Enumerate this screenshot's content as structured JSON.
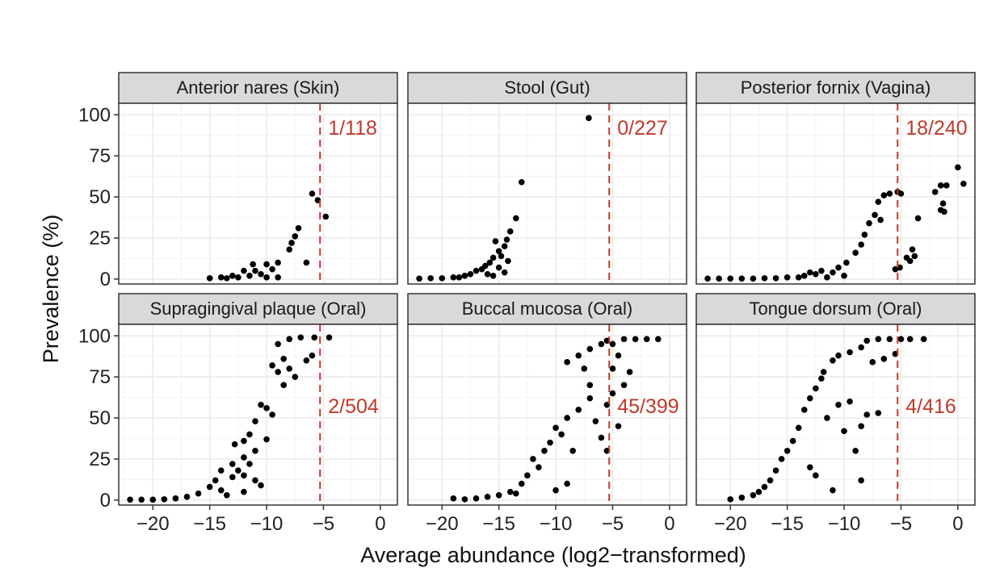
{
  "colors": {
    "points": "#000000",
    "threshold_line": "#c0392b",
    "annotation": "#c0392b",
    "strip_background": "#d9d9d9",
    "grid": "#ebebeb",
    "panel_border": "#333333"
  },
  "chart_data": {
    "type": "scatter",
    "layout": "facet-grid 2x3",
    "xlabel": "Average abundance (log2−transformed)",
    "ylabel": "Prevalence (%)",
    "xlim": [
      -23,
      1.5
    ],
    "ylim": [
      -3,
      107
    ],
    "x_ticks": [
      -20,
      -15,
      -10,
      -5,
      0
    ],
    "x_tick_labels": [
      "−20",
      "−15",
      "−10",
      "−5",
      "0"
    ],
    "y_ticks": [
      0,
      25,
      50,
      75,
      100
    ],
    "y_tick_labels": [
      "0",
      "25",
      "50",
      "75",
      "100"
    ],
    "threshold_x": -5.3,
    "grid": true,
    "panels": [
      {
        "title": "Anterior nares (Skin)",
        "annotation": "1/118",
        "points": [
          [
            -6,
            52
          ],
          [
            -5.5,
            48
          ],
          [
            -4.8,
            38
          ],
          [
            -7.2,
            31
          ],
          [
            -7.5,
            26
          ],
          [
            -7.8,
            22
          ],
          [
            -8,
            18
          ],
          [
            -6.5,
            10
          ],
          [
            -9,
            10
          ],
          [
            -10,
            9
          ],
          [
            -11.2,
            9
          ],
          [
            -9.5,
            6
          ],
          [
            -11,
            5
          ],
          [
            -12,
            5
          ],
          [
            -10.5,
            3
          ],
          [
            -13,
            2
          ],
          [
            -14,
            1
          ],
          [
            -15,
            0.5
          ],
          [
            -13.5,
            0.5
          ],
          [
            -12.5,
            1
          ],
          [
            -11.5,
            2
          ],
          [
            -10,
            1
          ],
          [
            -9,
            1
          ]
        ]
      },
      {
        "title": "Stool (Gut)",
        "annotation": "0/227",
        "points": [
          [
            -7.1,
            98
          ],
          [
            -13,
            59
          ],
          [
            -13.5,
            37
          ],
          [
            -14,
            29
          ],
          [
            -14.3,
            24
          ],
          [
            -15.3,
            23
          ],
          [
            -14.5,
            20
          ],
          [
            -15,
            17
          ],
          [
            -14.8,
            14
          ],
          [
            -15.5,
            13
          ],
          [
            -14.2,
            11
          ],
          [
            -15.8,
            10
          ],
          [
            -16.2,
            8
          ],
          [
            -16.5,
            6
          ],
          [
            -17,
            5
          ],
          [
            -15,
            7
          ],
          [
            -14.5,
            4
          ],
          [
            -17.5,
            3
          ],
          [
            -18,
            2
          ],
          [
            -19,
            1
          ],
          [
            -20,
            0.5
          ],
          [
            -21,
            0.5
          ],
          [
            -22,
            0.3
          ],
          [
            -18.5,
            1
          ],
          [
            -16,
            3
          ],
          [
            -15.5,
            2
          ]
        ]
      },
      {
        "title": "Posterior fornix (Vagina)",
        "annotation": "18/240",
        "points": [
          [
            0,
            68
          ],
          [
            0.5,
            58
          ],
          [
            -1,
            57
          ],
          [
            -1.5,
            57
          ],
          [
            -1.3,
            46
          ],
          [
            -1.5,
            42
          ],
          [
            -1.2,
            41
          ],
          [
            -2,
            53
          ],
          [
            -5.3,
            53
          ],
          [
            -5,
            52
          ],
          [
            -6,
            52
          ],
          [
            -6.5,
            51
          ],
          [
            -7,
            47
          ],
          [
            -7.3,
            39
          ],
          [
            -6.8,
            36
          ],
          [
            -7.8,
            34
          ],
          [
            -8.2,
            27
          ],
          [
            -8.5,
            21
          ],
          [
            -9,
            16
          ],
          [
            -9.8,
            10
          ],
          [
            -10.5,
            7
          ],
          [
            -11,
            4
          ],
          [
            -3.5,
            37
          ],
          [
            -4,
            18
          ],
          [
            -4.5,
            13
          ],
          [
            -4.2,
            11
          ],
          [
            -5.1,
            7
          ],
          [
            -5.5,
            6
          ],
          [
            -3.8,
            14
          ],
          [
            -10,
            2
          ],
          [
            -11.5,
            1
          ],
          [
            -12.5,
            3
          ],
          [
            -13.5,
            2
          ],
          [
            -14,
            1
          ],
          [
            -15,
            1
          ],
          [
            -16,
            0.5
          ],
          [
            -17,
            0.5
          ],
          [
            -18,
            0.3
          ],
          [
            -19,
            0.3
          ],
          [
            -20,
            0.3
          ],
          [
            -21,
            0.3
          ],
          [
            -22,
            0.3
          ],
          [
            -12,
            5
          ],
          [
            -13,
            4
          ]
        ]
      },
      {
        "title": "Supragingival plaque (Oral)",
        "annotation": "2/504",
        "points": [
          [
            -4.5,
            99
          ],
          [
            -5.8,
            99
          ],
          [
            -7,
            99
          ],
          [
            -8,
            98
          ],
          [
            -9,
            95
          ],
          [
            -6,
            88
          ],
          [
            -6.5,
            85
          ],
          [
            -8.5,
            86
          ],
          [
            -9.5,
            82
          ],
          [
            -9,
            78
          ],
          [
            -8,
            80
          ],
          [
            -10,
            56
          ],
          [
            -10.5,
            58
          ],
          [
            -9.5,
            52
          ],
          [
            -11,
            48
          ],
          [
            -11.5,
            40
          ],
          [
            -12,
            36
          ],
          [
            -12.8,
            34
          ],
          [
            -11,
            30
          ],
          [
            -12,
            26
          ],
          [
            -13,
            22
          ],
          [
            -12.5,
            18
          ],
          [
            -14,
            18
          ],
          [
            -13,
            14
          ],
          [
            -14.5,
            12
          ],
          [
            -11,
            12
          ],
          [
            -10.5,
            9
          ],
          [
            -15,
            8
          ],
          [
            -14,
            6
          ],
          [
            -16,
            4
          ],
          [
            -17,
            2
          ],
          [
            -18,
            1
          ],
          [
            -19,
            0.5
          ],
          [
            -20,
            0.3
          ],
          [
            -21,
            0.3
          ],
          [
            -22,
            0.3
          ],
          [
            -12,
            5
          ],
          [
            -13.5,
            3
          ],
          [
            -12,
            15
          ],
          [
            -11.5,
            22
          ],
          [
            -10,
            37
          ],
          [
            -8.5,
            70
          ],
          [
            -7.5,
            75
          ]
        ]
      },
      {
        "title": "Buccal mucosa (Oral)",
        "annotation": "45/399",
        "points": [
          [
            -1,
            98
          ],
          [
            -2,
            98
          ],
          [
            -3,
            98
          ],
          [
            -4,
            98
          ],
          [
            -5.5,
            97
          ],
          [
            -6,
            95
          ],
          [
            -7,
            92
          ],
          [
            -8,
            88
          ],
          [
            -9,
            84
          ],
          [
            -4.5,
            88
          ],
          [
            -5,
            80
          ],
          [
            -3.5,
            78
          ],
          [
            -4,
            70
          ],
          [
            -5,
            65
          ],
          [
            -5.5,
            58
          ],
          [
            -6.5,
            48
          ],
          [
            -7,
            62
          ],
          [
            -8,
            55
          ],
          [
            -9,
            50
          ],
          [
            -9.5,
            40
          ],
          [
            -10,
            44
          ],
          [
            -10.5,
            35
          ],
          [
            -11,
            30
          ],
          [
            -8.5,
            30
          ],
          [
            -5.5,
            30
          ],
          [
            -6,
            38
          ],
          [
            -12,
            25
          ],
          [
            -11.5,
            20
          ],
          [
            -12.5,
            15
          ],
          [
            -13,
            10
          ],
          [
            -9,
            10
          ],
          [
            -10,
            6
          ],
          [
            -14,
            5
          ],
          [
            -15,
            3
          ],
          [
            -16,
            2
          ],
          [
            -17,
            1
          ],
          [
            -18,
            0.5
          ],
          [
            -19,
            1
          ],
          [
            -13.5,
            4
          ],
          [
            -7,
            70
          ],
          [
            -7.5,
            80
          ],
          [
            -4.5,
            45
          ],
          [
            -5,
            95
          ]
        ]
      },
      {
        "title": "Tongue dorsum (Oral)",
        "annotation": "4/416",
        "points": [
          [
            -3,
            98
          ],
          [
            -4.2,
            98
          ],
          [
            -5,
            98
          ],
          [
            -6,
            98
          ],
          [
            -7,
            98
          ],
          [
            -8,
            97
          ],
          [
            -8.5,
            93
          ],
          [
            -9.5,
            90
          ],
          [
            -10.5,
            88
          ],
          [
            -11,
            85
          ],
          [
            -11.8,
            78
          ],
          [
            -5.5,
            89
          ],
          [
            -6.5,
            86
          ],
          [
            -7.5,
            84
          ],
          [
            -12,
            74
          ],
          [
            -12.5,
            68
          ],
          [
            -13,
            62
          ],
          [
            -13.5,
            55
          ],
          [
            -11.5,
            50
          ],
          [
            -10.5,
            58
          ],
          [
            -9.5,
            60
          ],
          [
            -8,
            52
          ],
          [
            -8.5,
            45
          ],
          [
            -7,
            53
          ],
          [
            -14,
            44
          ],
          [
            -14.5,
            36
          ],
          [
            -15,
            30
          ],
          [
            -15.5,
            25
          ],
          [
            -16,
            18
          ],
          [
            -16.5,
            12
          ],
          [
            -17,
            8
          ],
          [
            -17.5,
            5
          ],
          [
            -18,
            3
          ],
          [
            -19,
            1.5
          ],
          [
            -20,
            0.5
          ],
          [
            -11,
            6
          ],
          [
            -8.5,
            12
          ],
          [
            -12.5,
            15
          ],
          [
            -13,
            20
          ],
          [
            -9,
            30
          ],
          [
            -10,
            42
          ]
        ]
      }
    ]
  }
}
